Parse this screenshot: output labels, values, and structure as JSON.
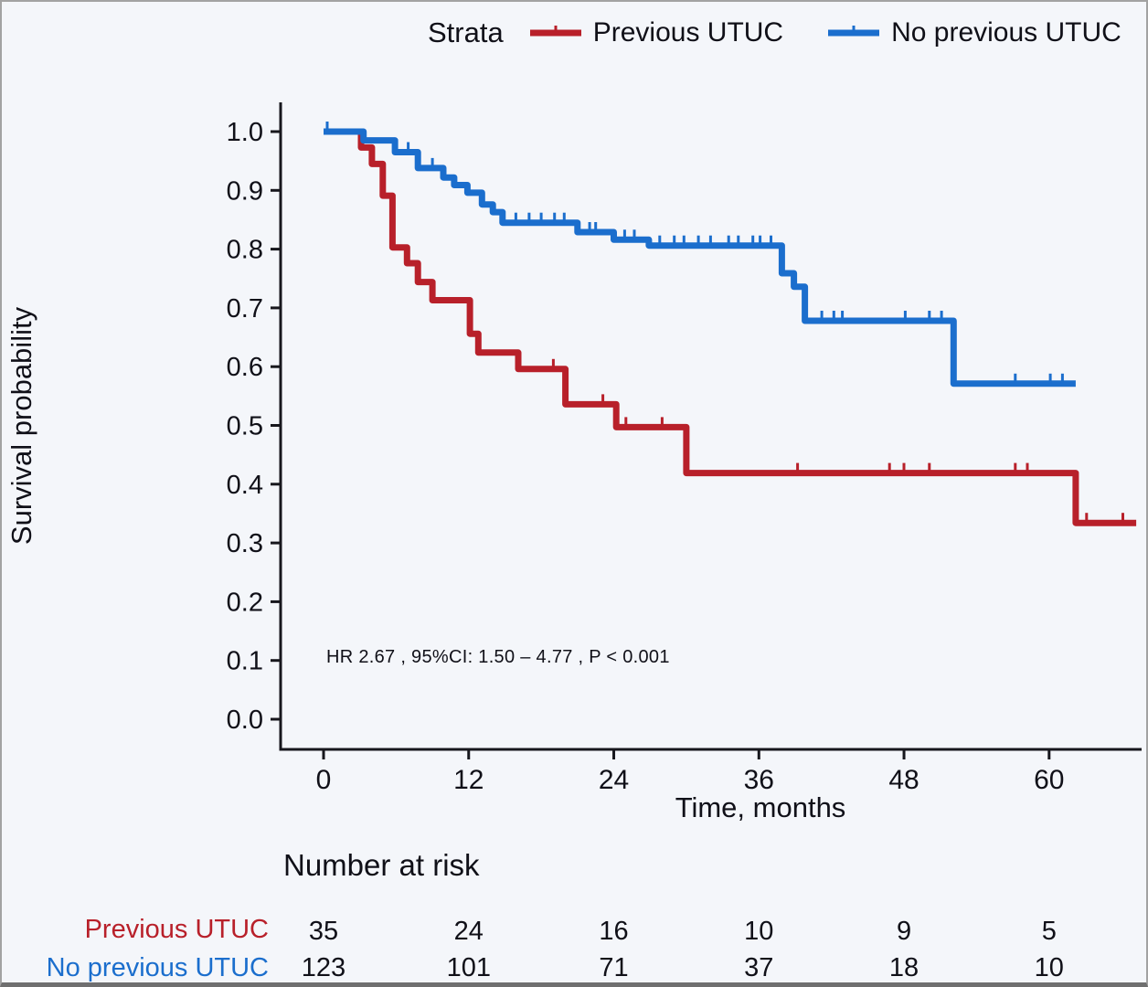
{
  "legend": {
    "title": "Strata",
    "items": [
      {
        "label": "Previous UTUC",
        "color": "#b8202a"
      },
      {
        "label": "No previous UTUC",
        "color": "#1b6ecd"
      }
    ]
  },
  "axes": {
    "y_title": "Survival probability",
    "x_title": "Time, months"
  },
  "annotation": {
    "text": "HR  2.67 , 95%CI:  1.50 – 4.77 ,  P < 0.001"
  },
  "risk_table": {
    "title": "Number at risk",
    "rows": [
      {
        "label": "Previous UTUC",
        "color": "#b8202a",
        "values": [
          "35",
          "24",
          "16",
          "10",
          "9",
          "5"
        ]
      },
      {
        "label": "No previous UTUC",
        "color": "#1b6ecd",
        "values": [
          "123",
          "101",
          "71",
          "37",
          "18",
          "10"
        ]
      }
    ]
  },
  "chart_data": {
    "type": "line",
    "subtype": "kaplan_meier_step_curves",
    "title": "",
    "xlabel": "Time, months",
    "ylabel": "Survival probability",
    "xlim": [
      0,
      67.5
    ],
    "ylim": [
      0.0,
      1.0
    ],
    "x_ticks": [
      0,
      12,
      24,
      36,
      48,
      60
    ],
    "x_tick_labels": [
      "0",
      "12",
      "24",
      "36",
      "48",
      "60"
    ],
    "y_ticks": [
      1.0,
      0.9,
      0.8,
      0.7,
      0.6,
      0.5,
      0.4,
      0.3,
      0.2,
      0.1,
      0.0
    ],
    "y_tick_labels": [
      "1.0",
      "0.9",
      "0.8",
      "0.7",
      "0.6",
      "0.5",
      "0.4",
      "0.3",
      "0.2",
      "0.1",
      "0.0"
    ],
    "grid": false,
    "legend_position": "top",
    "hr_annotation": "HR 2.67, 95%CI: 1.50 – 4.77, P < 0.001",
    "series": [
      {
        "name": "Previous UTUC",
        "color": "#b8202a",
        "steps": [
          [
            0,
            1.0
          ],
          [
            3.1,
            0.973
          ],
          [
            4.0,
            0.945
          ],
          [
            4.9,
            0.891
          ],
          [
            5.7,
            0.803
          ],
          [
            6.9,
            0.776
          ],
          [
            7.8,
            0.744
          ],
          [
            9.0,
            0.713
          ],
          [
            12.1,
            0.656
          ],
          [
            12.8,
            0.624
          ],
          [
            16.1,
            0.596
          ],
          [
            20.0,
            0.536
          ],
          [
            24.2,
            0.497
          ],
          [
            30.0,
            0.419
          ],
          [
            62.2,
            0.334
          ]
        ],
        "end": 67.2,
        "censors": [
          [
            19.0,
            0.596
          ],
          [
            23.1,
            0.536
          ],
          [
            25.0,
            0.497
          ],
          [
            28.0,
            0.497
          ],
          [
            39.2,
            0.419
          ],
          [
            46.8,
            0.419
          ],
          [
            48.0,
            0.419
          ],
          [
            50.1,
            0.419
          ],
          [
            57.2,
            0.419
          ],
          [
            58.2,
            0.419
          ],
          [
            63.1,
            0.334
          ],
          [
            66.1,
            0.334
          ]
        ],
        "number_at_risk": [
          35,
          24,
          16,
          10,
          9,
          5
        ]
      },
      {
        "name": "No previous UTUC",
        "color": "#1b6ecd",
        "steps": [
          [
            0,
            1.0
          ],
          [
            3.3,
            0.985
          ],
          [
            5.9,
            0.965
          ],
          [
            7.8,
            0.938
          ],
          [
            9.9,
            0.922
          ],
          [
            10.8,
            0.909
          ],
          [
            11.9,
            0.896
          ],
          [
            13.1,
            0.876
          ],
          [
            14.0,
            0.863
          ],
          [
            14.8,
            0.845
          ],
          [
            21.0,
            0.829
          ],
          [
            24.0,
            0.816
          ],
          [
            26.9,
            0.806
          ],
          [
            37.9,
            0.759
          ],
          [
            38.9,
            0.736
          ],
          [
            39.8,
            0.678
          ],
          [
            52.1,
            0.571
          ]
        ],
        "end": 62.2,
        "censors": [
          [
            0.3,
            1.0
          ],
          [
            7.0,
            0.965
          ],
          [
            9.0,
            0.938
          ],
          [
            15.9,
            0.845
          ],
          [
            17.0,
            0.845
          ],
          [
            18.0,
            0.845
          ],
          [
            19.1,
            0.845
          ],
          [
            19.9,
            0.845
          ],
          [
            22.0,
            0.829
          ],
          [
            22.5,
            0.829
          ],
          [
            24.9,
            0.816
          ],
          [
            25.7,
            0.816
          ],
          [
            27.8,
            0.806
          ],
          [
            29.0,
            0.806
          ],
          [
            29.8,
            0.806
          ],
          [
            31.0,
            0.806
          ],
          [
            32.0,
            0.806
          ],
          [
            33.5,
            0.806
          ],
          [
            34.3,
            0.806
          ],
          [
            35.5,
            0.806
          ],
          [
            36.1,
            0.806
          ],
          [
            37.0,
            0.806
          ],
          [
            41.2,
            0.678
          ],
          [
            42.2,
            0.678
          ],
          [
            42.9,
            0.678
          ],
          [
            48.1,
            0.678
          ],
          [
            50.1,
            0.678
          ],
          [
            51.1,
            0.678
          ],
          [
            57.2,
            0.571
          ],
          [
            60.1,
            0.571
          ],
          [
            61.1,
            0.571
          ]
        ],
        "number_at_risk": [
          123,
          101,
          71,
          37,
          18,
          10
        ]
      }
    ]
  }
}
